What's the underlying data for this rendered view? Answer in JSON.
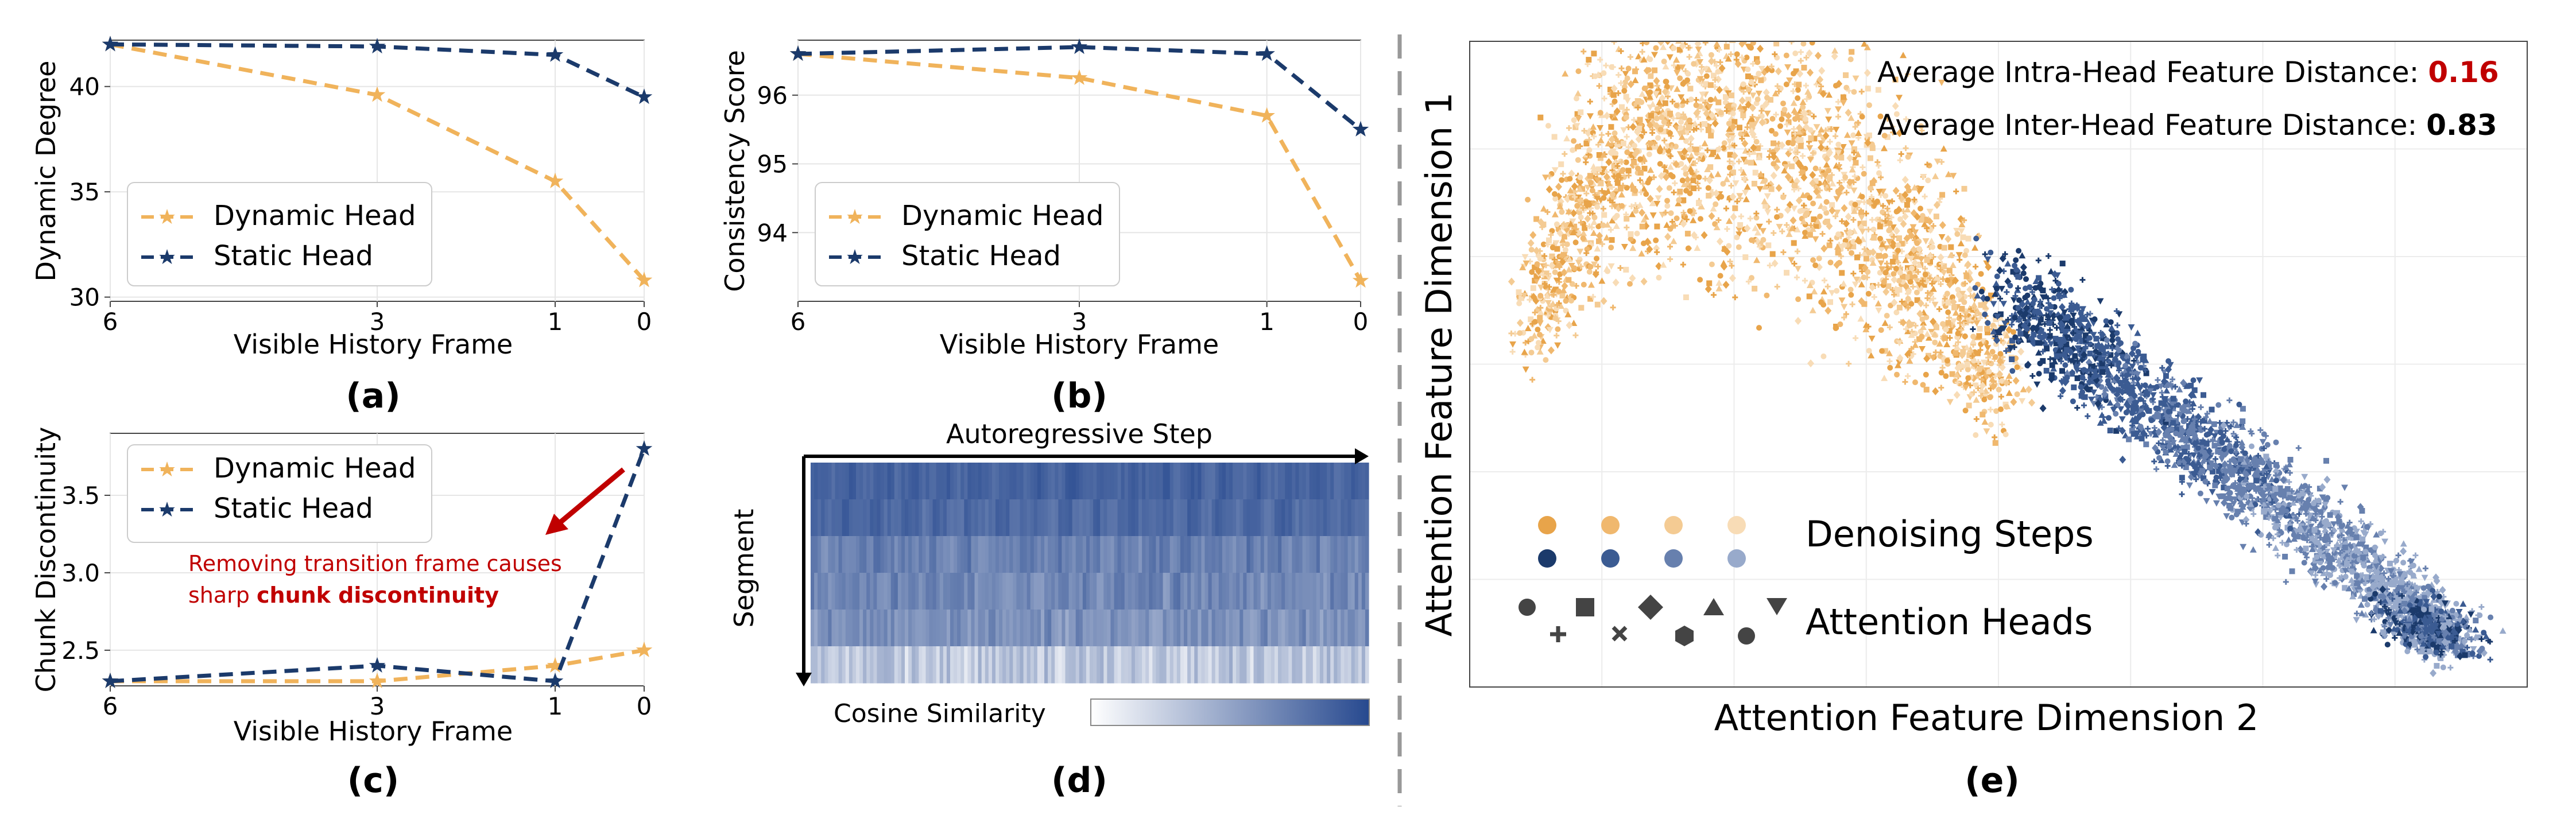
{
  "colors": {
    "dynamic": "#F0B35B",
    "static": "#1B3A6B",
    "annotation": "#C00000",
    "heat_low": "#FFFFFF",
    "heat_high": "#27498F"
  },
  "chart_data": [
    {
      "id": "a",
      "type": "line",
      "panel_label": "(a)",
      "xlabel": "Visible History Frame",
      "ylabel": "Dynamic Degree",
      "x_ticks": [
        "6",
        "3",
        "1",
        "0"
      ],
      "y_ticks": [
        "30",
        "35",
        "40"
      ],
      "ylim": [
        29.8,
        42.2
      ],
      "legend": "lower-left",
      "series": [
        {
          "name": "Dynamic Head",
          "values": [
            42.0,
            39.6,
            35.5,
            30.8
          ]
        },
        {
          "name": "Static Head",
          "values": [
            42.0,
            41.9,
            41.5,
            39.5
          ]
        }
      ]
    },
    {
      "id": "b",
      "type": "line",
      "panel_label": "(b)",
      "xlabel": "Visible History Frame",
      "ylabel": "Consistency Score",
      "x_ticks": [
        "6",
        "3",
        "1",
        "0"
      ],
      "y_ticks": [
        "94",
        "95",
        "96"
      ],
      "ylim": [
        93.0,
        96.8
      ],
      "legend": "lower-left",
      "series": [
        {
          "name": "Dynamic Head",
          "values": [
            96.6,
            96.25,
            95.7,
            93.3
          ]
        },
        {
          "name": "Static Head",
          "values": [
            96.6,
            96.7,
            96.6,
            95.5
          ]
        }
      ]
    },
    {
      "id": "c",
      "type": "line",
      "panel_label": "(c)",
      "xlabel": "Visible History Frame",
      "ylabel": "Chunk Discontinuity",
      "x_ticks": [
        "6",
        "3",
        "1",
        "0"
      ],
      "y_ticks": [
        "2.5",
        "3.0",
        "3.5"
      ],
      "ylim": [
        2.27,
        3.9
      ],
      "legend": "upper-left",
      "annotation": {
        "line1": "Removing transition frame causes",
        "line2_prefix": "sharp ",
        "line2_bold": "chunk discontinuity"
      },
      "series": [
        {
          "name": "Dynamic Head",
          "values": [
            2.3,
            2.3,
            2.4,
            2.5
          ]
        },
        {
          "name": "Static Head",
          "values": [
            2.3,
            2.4,
            2.3,
            3.8
          ]
        }
      ]
    },
    {
      "id": "d",
      "type": "heatmap",
      "panel_label": "(d)",
      "xlabel": "Autoregressive Step",
      "ylabel": "Segment",
      "colorbar_label": "Cosine Similarity",
      "rows": 6,
      "row_base": [
        0.86,
        0.82,
        0.7,
        0.66,
        0.6,
        0.3
      ],
      "row_spread": [
        0.1,
        0.12,
        0.18,
        0.2,
        0.22,
        0.3
      ]
    },
    {
      "id": "e",
      "type": "scatter",
      "panel_label": "(e)",
      "xlabel": "Attention Feature Dimension 2",
      "ylabel": "Attention Feature Dimension 1",
      "stat1": {
        "label": "Average Intra-Head Feature Distance: ",
        "value": "0.16"
      },
      "stat2": {
        "label": "Average Inter-Head Feature Distance: ",
        "value": "0.83"
      },
      "legend_steps": "Denoising Steps",
      "legend_heads": "Attention Heads",
      "step_colors": [
        "#E8A44A",
        "#F0B86E",
        "#F4CB93",
        "#F8DCB6",
        "#1B3A6B",
        "#3B5B92",
        "#6780AE",
        "#98AACB"
      ],
      "head_markers": [
        "circle",
        "square",
        "diamond",
        "triangle-up",
        "triangle-down",
        "plus",
        "x",
        "hexagon",
        "pentagon"
      ]
    }
  ]
}
